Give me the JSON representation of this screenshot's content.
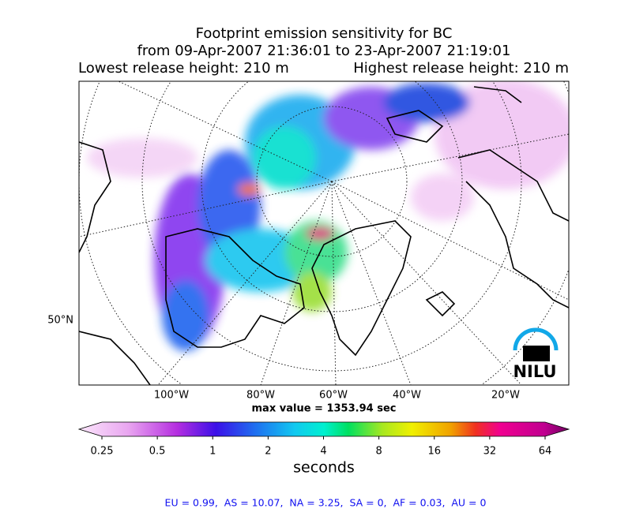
{
  "header": {
    "title": "Footprint emission sensitivity for BC",
    "period": "from 09-Apr-2007 21:36:01 to 23-Apr-2007 21:19:01",
    "lowest": "Lowest release height: 210 m",
    "highest": "Highest release height: 210 m"
  },
  "map": {
    "lon_labels": [
      "100°W",
      "80°W",
      "60°W",
      "40°W",
      "20°W"
    ],
    "lat_label": "50°N",
    "max_value": "max value = 1353.94 sec",
    "logo": "NILU"
  },
  "colorbar": {
    "ticks": [
      0.25,
      0.5,
      1,
      2,
      4,
      8,
      16,
      32,
      64
    ],
    "label": "seconds"
  },
  "footer": "EU = 0.99,  AS = 10.07,  NA = 3.25,  SA = 0,  AF = 0.03,  AU = 0"
}
